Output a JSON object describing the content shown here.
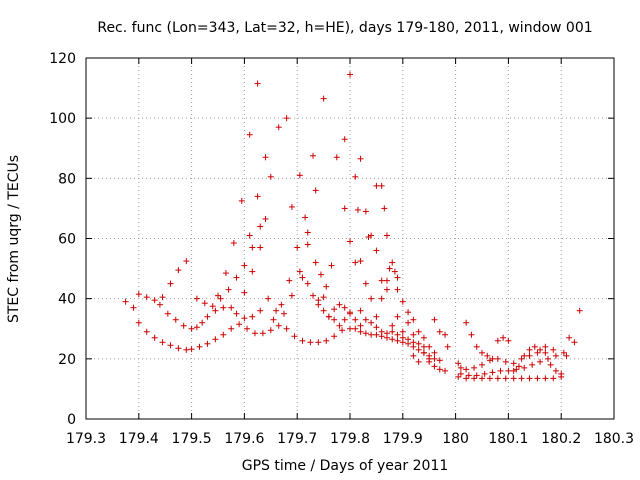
{
  "chart_data": {
    "type": "scatter",
    "title": "Rec. func (Lon=343, Lat=32, h=HE), days 179-180, 2011, window 001",
    "xlabel": "GPS time / Days of year 2011",
    "ylabel": "STEC from uqrg / TECUs",
    "xlim": [
      179.3,
      180.3
    ],
    "ylim": [
      0,
      120
    ],
    "x_ticks": [
      "179.3",
      "179.4",
      "179.5",
      "179.6",
      "179.7",
      "179.8",
      "179.9",
      "180",
      "180.1",
      "180.2",
      "180.3"
    ],
    "y_ticks": [
      "0",
      "20",
      "40",
      "60",
      "80",
      "100",
      "120"
    ],
    "grid": true,
    "marker": "+",
    "color": "#cc0000",
    "series": [
      {
        "points": [
          [
            179.375,
            39
          ],
          [
            179.39,
            37
          ],
          [
            179.4,
            41.5
          ],
          [
            179.415,
            40.5
          ],
          [
            179.43,
            39.5
          ],
          [
            179.445,
            40.5
          ],
          [
            179.46,
            45
          ],
          [
            179.475,
            49.5
          ],
          [
            179.49,
            52.5
          ],
          [
            179.4,
            32
          ],
          [
            179.415,
            29
          ],
          [
            179.43,
            27
          ],
          [
            179.445,
            25.5
          ],
          [
            179.46,
            24.5
          ],
          [
            179.475,
            23.5
          ],
          [
            179.49,
            23
          ],
          [
            179.5,
            23.2
          ],
          [
            179.515,
            24
          ],
          [
            179.53,
            25
          ],
          [
            179.545,
            26.5
          ],
          [
            179.56,
            28
          ],
          [
            179.575,
            30
          ],
          [
            179.59,
            31.5
          ],
          [
            179.605,
            30
          ],
          [
            179.62,
            28.5
          ],
          [
            179.635,
            28.5
          ],
          [
            179.65,
            29.5
          ],
          [
            179.665,
            31
          ],
          [
            179.68,
            30
          ],
          [
            179.695,
            27.5
          ],
          [
            179.71,
            26
          ],
          [
            179.725,
            25.5
          ],
          [
            179.74,
            25.5
          ],
          [
            179.755,
            26
          ],
          [
            179.77,
            27.5
          ],
          [
            179.785,
            29.5
          ],
          [
            179.8,
            30
          ],
          [
            179.44,
            38
          ],
          [
            179.455,
            35
          ],
          [
            179.47,
            33
          ],
          [
            179.485,
            31
          ],
          [
            179.5,
            30
          ],
          [
            179.51,
            30.5
          ],
          [
            179.52,
            32
          ],
          [
            179.53,
            34
          ],
          [
            179.545,
            36
          ],
          [
            179.56,
            37
          ],
          [
            179.51,
            40
          ],
          [
            179.525,
            38.5
          ],
          [
            179.54,
            37.5
          ],
          [
            179.555,
            40
          ],
          [
            179.57,
            43
          ],
          [
            179.585,
            47
          ],
          [
            179.6,
            51
          ],
          [
            179.615,
            57
          ],
          [
            179.63,
            64
          ],
          [
            179.55,
            41
          ],
          [
            179.565,
            48.5
          ],
          [
            179.58,
            58.5
          ],
          [
            179.595,
            72.5
          ],
          [
            179.61,
            94.5
          ],
          [
            179.625,
            111.5
          ],
          [
            179.575,
            37
          ],
          [
            179.585,
            35
          ],
          [
            179.6,
            42
          ],
          [
            179.615,
            49
          ],
          [
            179.63,
            57
          ],
          [
            179.64,
            66.5
          ],
          [
            179.65,
            80.5
          ],
          [
            179.665,
            97
          ],
          [
            179.68,
            100
          ],
          [
            179.6,
            33.5
          ],
          [
            179.615,
            34
          ],
          [
            179.63,
            36
          ],
          [
            179.645,
            40
          ],
          [
            179.66,
            36
          ],
          [
            179.675,
            35
          ],
          [
            179.69,
            41
          ],
          [
            179.705,
            49
          ],
          [
            179.72,
            58
          ],
          [
            179.735,
            76
          ],
          [
            179.75,
            106.5
          ],
          [
            179.61,
            61
          ],
          [
            179.625,
            74
          ],
          [
            179.64,
            87
          ],
          [
            179.655,
            33
          ],
          [
            179.67,
            38
          ],
          [
            179.685,
            46
          ],
          [
            179.7,
            57
          ],
          [
            179.715,
            67
          ],
          [
            179.73,
            87.5
          ],
          [
            179.69,
            70.5
          ],
          [
            179.705,
            81
          ],
          [
            179.72,
            62
          ],
          [
            179.735,
            52
          ],
          [
            179.745,
            48
          ],
          [
            179.755,
            44
          ],
          [
            179.765,
            51
          ],
          [
            179.775,
            87
          ],
          [
            179.79,
            93
          ],
          [
            179.8,
            114.5
          ],
          [
            179.71,
            47
          ],
          [
            179.72,
            45
          ],
          [
            179.73,
            41
          ],
          [
            179.74,
            38
          ],
          [
            179.75,
            36
          ],
          [
            179.76,
            34
          ],
          [
            179.77,
            36.5
          ],
          [
            179.78,
            38
          ],
          [
            179.79,
            37
          ],
          [
            179.8,
            35
          ],
          [
            179.74,
            39.5
          ],
          [
            179.75,
            40.5
          ],
          [
            179.76,
            34
          ],
          [
            179.77,
            33
          ],
          [
            179.78,
            31
          ],
          [
            179.79,
            33
          ],
          [
            179.8,
            35.5
          ],
          [
            179.81,
            33
          ],
          [
            179.82,
            31
          ],
          [
            179.79,
            70
          ],
          [
            179.8,
            59
          ],
          [
            179.81,
            52
          ],
          [
            179.815,
            69.5
          ],
          [
            179.82,
            86.5
          ],
          [
            179.83,
            69
          ],
          [
            179.835,
            60.5
          ],
          [
            179.84,
            61
          ],
          [
            179.85,
            77.5
          ],
          [
            179.86,
            77.5
          ],
          [
            179.865,
            70
          ],
          [
            179.87,
            61
          ],
          [
            179.81,
            80.5
          ],
          [
            179.82,
            52.5
          ],
          [
            179.83,
            45
          ],
          [
            179.84,
            40
          ],
          [
            179.85,
            56
          ],
          [
            179.86,
            46
          ],
          [
            179.87,
            43
          ],
          [
            179.875,
            50
          ],
          [
            179.885,
            49
          ],
          [
            179.89,
            43
          ],
          [
            179.81,
            30
          ],
          [
            179.82,
            29
          ],
          [
            179.83,
            28.5
          ],
          [
            179.84,
            28
          ],
          [
            179.85,
            28
          ],
          [
            179.86,
            27.5
          ],
          [
            179.87,
            27
          ],
          [
            179.88,
            26.5
          ],
          [
            179.89,
            26
          ],
          [
            179.9,
            25.5
          ],
          [
            179.91,
            25
          ],
          [
            179.92,
            24
          ],
          [
            179.93,
            23
          ],
          [
            179.94,
            22
          ],
          [
            179.95,
            21
          ],
          [
            179.96,
            20
          ],
          [
            179.97,
            19.5
          ],
          [
            179.82,
            36
          ],
          [
            179.83,
            33
          ],
          [
            179.84,
            32
          ],
          [
            179.85,
            30.5
          ],
          [
            179.86,
            29
          ],
          [
            179.87,
            28.5
          ],
          [
            179.88,
            29
          ],
          [
            179.89,
            28
          ],
          [
            179.9,
            27
          ],
          [
            179.91,
            26.5
          ],
          [
            179.92,
            25.5
          ],
          [
            179.85,
            34
          ],
          [
            179.86,
            40
          ],
          [
            179.87,
            46
          ],
          [
            179.88,
            52
          ],
          [
            179.89,
            47
          ],
          [
            179.9,
            39
          ],
          [
            179.91,
            35.5
          ],
          [
            179.92,
            33
          ],
          [
            179.93,
            29
          ],
          [
            179.94,
            27
          ],
          [
            179.95,
            24
          ],
          [
            179.96,
            22
          ],
          [
            179.88,
            31
          ],
          [
            179.89,
            34
          ],
          [
            179.9,
            29
          ],
          [
            179.91,
            32
          ],
          [
            179.92,
            28
          ],
          [
            179.93,
            25
          ],
          [
            179.94,
            22
          ],
          [
            179.95,
            19
          ],
          [
            179.96,
            17.5
          ],
          [
            179.97,
            16.5
          ],
          [
            179.98,
            16
          ],
          [
            179.92,
            21
          ],
          [
            179.93,
            19
          ],
          [
            179.94,
            24
          ],
          [
            179.95,
            20
          ],
          [
            179.96,
            33
          ],
          [
            179.97,
            29
          ],
          [
            179.98,
            28
          ],
          [
            179.985,
            24
          ],
          [
            180.005,
            18.5
          ],
          [
            180.01,
            17
          ],
          [
            180.02,
            32
          ],
          [
            180.03,
            28
          ],
          [
            180.04,
            24
          ],
          [
            180.05,
            22
          ],
          [
            180.06,
            21
          ],
          [
            180.07,
            20
          ],
          [
            180.08,
            26
          ],
          [
            180.09,
            27
          ],
          [
            180.005,
            14
          ],
          [
            180.02,
            13.5
          ],
          [
            180.035,
            13.5
          ],
          [
            180.05,
            13.5
          ],
          [
            180.065,
            13.5
          ],
          [
            180.08,
            13.5
          ],
          [
            180.095,
            13.5
          ],
          [
            180.11,
            13.5
          ],
          [
            180.125,
            13.5
          ],
          [
            180.14,
            13.5
          ],
          [
            180.155,
            13.5
          ],
          [
            180.17,
            13.5
          ],
          [
            180.185,
            13.5
          ],
          [
            180.2,
            14
          ],
          [
            180.01,
            15
          ],
          [
            180.025,
            14.5
          ],
          [
            180.04,
            14.5
          ],
          [
            180.055,
            15
          ],
          [
            180.07,
            15.5
          ],
          [
            180.085,
            16
          ],
          [
            180.1,
            16
          ],
          [
            180.115,
            16.5
          ],
          [
            180.13,
            17
          ],
          [
            180.145,
            18
          ],
          [
            180.16,
            19
          ],
          [
            180.175,
            20
          ],
          [
            180.19,
            21
          ],
          [
            180.205,
            22
          ],
          [
            180.02,
            16.5
          ],
          [
            180.035,
            17
          ],
          [
            180.05,
            18
          ],
          [
            180.065,
            19.5
          ],
          [
            180.08,
            20
          ],
          [
            180.095,
            19
          ],
          [
            180.11,
            18.5
          ],
          [
            180.125,
            20
          ],
          [
            180.14,
            21
          ],
          [
            180.155,
            22
          ],
          [
            180.17,
            24
          ],
          [
            180.185,
            23
          ],
          [
            180.1,
            26
          ],
          [
            180.11,
            16
          ],
          [
            180.12,
            17.5
          ],
          [
            180.13,
            21
          ],
          [
            180.14,
            23
          ],
          [
            180.15,
            24
          ],
          [
            180.16,
            23
          ],
          [
            180.17,
            22
          ],
          [
            180.18,
            18
          ],
          [
            180.19,
            16
          ],
          [
            180.2,
            15
          ],
          [
            180.21,
            21
          ],
          [
            180.215,
            27
          ],
          [
            180.225,
            25.5
          ],
          [
            180.235,
            36
          ]
        ]
      }
    ]
  }
}
